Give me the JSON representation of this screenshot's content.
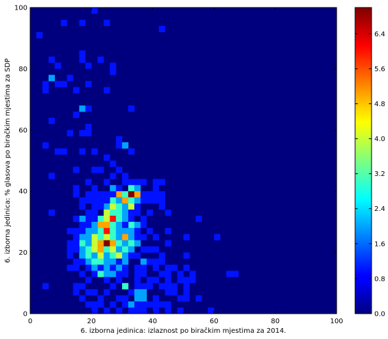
{
  "chart_data": {
    "type": "heatmap",
    "title": "",
    "xlabel": "6. izborna jedinica: izlaznost po biračkim mjestima za 2014.",
    "ylabel": "6. izborna jedinica: % glasova po biračkim mjestima za SDP",
    "xlim": [
      0,
      100
    ],
    "ylim": [
      0,
      100
    ],
    "x_ticks": [
      "0",
      "20",
      "40",
      "60",
      "80",
      "100"
    ],
    "y_ticks": [
      "0",
      "20",
      "40",
      "60",
      "80",
      "100"
    ],
    "bin_size": 2,
    "colormap": "jet",
    "color_range": [
      0,
      7
    ],
    "colorbar_ticks": [
      "0.0",
      "0.8",
      "1.6",
      "2.4",
      "3.2",
      "4.0",
      "4.8",
      "5.6",
      "6.4"
    ],
    "colorbar_tick_values": [
      0,
      0.8,
      1.6,
      2.4,
      3.2,
      4.0,
      4.8,
      5.6,
      6.4
    ],
    "cells": [
      [
        20,
        98,
        1
      ],
      [
        10,
        94,
        1
      ],
      [
        16,
        94,
        1
      ],
      [
        24,
        94,
        1
      ],
      [
        42,
        92,
        1
      ],
      [
        2,
        90,
        1
      ],
      [
        6,
        82,
        1
      ],
      [
        16,
        82,
        1
      ],
      [
        22,
        82,
        1
      ],
      [
        16,
        84,
        1
      ],
      [
        8,
        80,
        1
      ],
      [
        18,
        80,
        1
      ],
      [
        26,
        80,
        1
      ],
      [
        26,
        78,
        1
      ],
      [
        6,
        76,
        2
      ],
      [
        12,
        76,
        1
      ],
      [
        4,
        74,
        1
      ],
      [
        8,
        74,
        1
      ],
      [
        10,
        74,
        1
      ],
      [
        18,
        74,
        1
      ],
      [
        14,
        72,
        1
      ],
      [
        4,
        72,
        1
      ],
      [
        24,
        72,
        1
      ],
      [
        16,
        66,
        2
      ],
      [
        18,
        66,
        1
      ],
      [
        32,
        66,
        1
      ],
      [
        14,
        64,
        1
      ],
      [
        6,
        62,
        1
      ],
      [
        18,
        60,
        1
      ],
      [
        12,
        58,
        1
      ],
      [
        16,
        58,
        1
      ],
      [
        18,
        58,
        1
      ],
      [
        28,
        56,
        1
      ],
      [
        28,
        54,
        1
      ],
      [
        30,
        54,
        2
      ],
      [
        32,
        52,
        1
      ],
      [
        10,
        52,
        1
      ],
      [
        16,
        52,
        1
      ],
      [
        20,
        52,
        1
      ],
      [
        24,
        50,
        1
      ],
      [
        4,
        54,
        1
      ],
      [
        8,
        52,
        1
      ],
      [
        26,
        48,
        1
      ],
      [
        14,
        46,
        1
      ],
      [
        20,
        46,
        1
      ],
      [
        22,
        46,
        1
      ],
      [
        28,
        46,
        1
      ],
      [
        26,
        44,
        1
      ],
      [
        30,
        44,
        1
      ],
      [
        6,
        44,
        1
      ],
      [
        30,
        42,
        1
      ],
      [
        34,
        42,
        1
      ],
      [
        36,
        42,
        1
      ],
      [
        40,
        42,
        1
      ],
      [
        42,
        42,
        1
      ],
      [
        18,
        42,
        1
      ],
      [
        24,
        42,
        1
      ],
      [
        32,
        42,
        1
      ],
      [
        14,
        40,
        1
      ],
      [
        20,
        40,
        1
      ],
      [
        26,
        40,
        2
      ],
      [
        28,
        40,
        1
      ],
      [
        32,
        40,
        3
      ],
      [
        34,
        40,
        2
      ],
      [
        40,
        40,
        1
      ],
      [
        28,
        38,
        5
      ],
      [
        30,
        38,
        3
      ],
      [
        32,
        38,
        7
      ],
      [
        34,
        38,
        5
      ],
      [
        36,
        38,
        1
      ],
      [
        38,
        38,
        1
      ],
      [
        40,
        38,
        1
      ],
      [
        42,
        38,
        1
      ],
      [
        18,
        38,
        1
      ],
      [
        20,
        38,
        1
      ],
      [
        22,
        38,
        1
      ],
      [
        24,
        38,
        1
      ],
      [
        26,
        38,
        1
      ],
      [
        14,
        38,
        1
      ],
      [
        26,
        36,
        3
      ],
      [
        28,
        36,
        2
      ],
      [
        30,
        36,
        5
      ],
      [
        32,
        36,
        3
      ],
      [
        34,
        36,
        2
      ],
      [
        36,
        36,
        1
      ],
      [
        38,
        36,
        1
      ],
      [
        40,
        36,
        1
      ],
      [
        42,
        36,
        1
      ],
      [
        20,
        36,
        1
      ],
      [
        24,
        36,
        1
      ],
      [
        16,
        36,
        1
      ],
      [
        18,
        36,
        1
      ],
      [
        22,
        36,
        1
      ],
      [
        24,
        34,
        2
      ],
      [
        26,
        34,
        4
      ],
      [
        28,
        34,
        3
      ],
      [
        30,
        34,
        2
      ],
      [
        32,
        34,
        4
      ],
      [
        34,
        34,
        1
      ],
      [
        22,
        34,
        1
      ],
      [
        20,
        34,
        1
      ],
      [
        16,
        34,
        1
      ],
      [
        42,
        34,
        1
      ],
      [
        24,
        32,
        4
      ],
      [
        26,
        32,
        3
      ],
      [
        28,
        32,
        3
      ],
      [
        30,
        32,
        2
      ],
      [
        32,
        32,
        1
      ],
      [
        20,
        32,
        1
      ],
      [
        18,
        32,
        1
      ],
      [
        6,
        32,
        1
      ],
      [
        38,
        32,
        1
      ],
      [
        44,
        32,
        1
      ],
      [
        34,
        32,
        1
      ],
      [
        22,
        30,
        3
      ],
      [
        24,
        30,
        4
      ],
      [
        26,
        30,
        6
      ],
      [
        28,
        30,
        3
      ],
      [
        30,
        30,
        2
      ],
      [
        32,
        30,
        1
      ],
      [
        18,
        30,
        1
      ],
      [
        16,
        30,
        2
      ],
      [
        14,
        30,
        1
      ],
      [
        20,
        30,
        1
      ],
      [
        36,
        30,
        1
      ],
      [
        54,
        30,
        1
      ],
      [
        22,
        28,
        5
      ],
      [
        24,
        28,
        5
      ],
      [
        26,
        28,
        3
      ],
      [
        28,
        28,
        2
      ],
      [
        32,
        28,
        3
      ],
      [
        34,
        28,
        2
      ],
      [
        18,
        28,
        1
      ],
      [
        20,
        28,
        2
      ],
      [
        36,
        28,
        1
      ],
      [
        16,
        28,
        1
      ],
      [
        30,
        28,
        1
      ],
      [
        22,
        26,
        3
      ],
      [
        24,
        26,
        6
      ],
      [
        26,
        26,
        3
      ],
      [
        28,
        26,
        2
      ],
      [
        30,
        26,
        2
      ],
      [
        32,
        26,
        2
      ],
      [
        20,
        26,
        2
      ],
      [
        18,
        26,
        2
      ],
      [
        16,
        26,
        1
      ],
      [
        12,
        26,
        1
      ],
      [
        14,
        26,
        1
      ],
      [
        34,
        26,
        1
      ],
      [
        38,
        26,
        1
      ],
      [
        44,
        26,
        1
      ],
      [
        20,
        24,
        4
      ],
      [
        22,
        24,
        3
      ],
      [
        24,
        24,
        4
      ],
      [
        26,
        24,
        3
      ],
      [
        28,
        24,
        2
      ],
      [
        30,
        24,
        5
      ],
      [
        32,
        24,
        2
      ],
      [
        18,
        24,
        2
      ],
      [
        16,
        24,
        2
      ],
      [
        14,
        24,
        1
      ],
      [
        34,
        24,
        1
      ],
      [
        36,
        24,
        1
      ],
      [
        40,
        24,
        1
      ],
      [
        50,
        24,
        1
      ],
      [
        60,
        24,
        1
      ],
      [
        20,
        22,
        4
      ],
      [
        22,
        22,
        5
      ],
      [
        24,
        22,
        7
      ],
      [
        26,
        22,
        5
      ],
      [
        28,
        22,
        3
      ],
      [
        30,
        22,
        2
      ],
      [
        32,
        22,
        3
      ],
      [
        16,
        22,
        3
      ],
      [
        18,
        22,
        2
      ],
      [
        14,
        22,
        1
      ],
      [
        12,
        22,
        1
      ],
      [
        34,
        22,
        2
      ],
      [
        44,
        22,
        1
      ],
      [
        18,
        20,
        3
      ],
      [
        20,
        20,
        4
      ],
      [
        22,
        20,
        5
      ],
      [
        24,
        20,
        3
      ],
      [
        26,
        20,
        4
      ],
      [
        28,
        20,
        2
      ],
      [
        30,
        20,
        3
      ],
      [
        32,
        20,
        2
      ],
      [
        16,
        20,
        2
      ],
      [
        14,
        20,
        1
      ],
      [
        12,
        20,
        1
      ],
      [
        36,
        20,
        1
      ],
      [
        38,
        20,
        1
      ],
      [
        40,
        20,
        1
      ],
      [
        18,
        18,
        3
      ],
      [
        20,
        18,
        2
      ],
      [
        22,
        18,
        4
      ],
      [
        24,
        18,
        2
      ],
      [
        26,
        18,
        3
      ],
      [
        28,
        18,
        4
      ],
      [
        30,
        18,
        2
      ],
      [
        32,
        18,
        1
      ],
      [
        16,
        18,
        2
      ],
      [
        12,
        18,
        1
      ],
      [
        34,
        18,
        1
      ],
      [
        42,
        18,
        1
      ],
      [
        50,
        18,
        1
      ],
      [
        18,
        16,
        2
      ],
      [
        20,
        16,
        3
      ],
      [
        22,
        16,
        3
      ],
      [
        24,
        16,
        2
      ],
      [
        26,
        16,
        2
      ],
      [
        28,
        16,
        1
      ],
      [
        30,
        16,
        2
      ],
      [
        14,
        16,
        1
      ],
      [
        16,
        16,
        1
      ],
      [
        36,
        16,
        2
      ],
      [
        38,
        16,
        1
      ],
      [
        40,
        16,
        1
      ],
      [
        42,
        16,
        1
      ],
      [
        18,
        14,
        1
      ],
      [
        20,
        14,
        2
      ],
      [
        22,
        14,
        1
      ],
      [
        24,
        14,
        2
      ],
      [
        26,
        14,
        1
      ],
      [
        28,
        14,
        2
      ],
      [
        30,
        14,
        1
      ],
      [
        14,
        14,
        1
      ],
      [
        12,
        14,
        1
      ],
      [
        34,
        14,
        1
      ],
      [
        36,
        14,
        1
      ],
      [
        40,
        14,
        1
      ],
      [
        44,
        14,
        1
      ],
      [
        46,
        14,
        1
      ],
      [
        50,
        14,
        1
      ],
      [
        16,
        12,
        1
      ],
      [
        20,
        12,
        1
      ],
      [
        22,
        12,
        3
      ],
      [
        24,
        12,
        2
      ],
      [
        26,
        12,
        2
      ],
      [
        28,
        12,
        1
      ],
      [
        30,
        12,
        1
      ],
      [
        34,
        12,
        1
      ],
      [
        36,
        12,
        1
      ],
      [
        42,
        12,
        1
      ],
      [
        44,
        12,
        1
      ],
      [
        48,
        12,
        1
      ],
      [
        64,
        12,
        1
      ],
      [
        66,
        12,
        1
      ],
      [
        52,
        12,
        1
      ],
      [
        18,
        10,
        1
      ],
      [
        24,
        10,
        1
      ],
      [
        28,
        10,
        1
      ],
      [
        34,
        10,
        1
      ],
      [
        38,
        10,
        1
      ],
      [
        44,
        10,
        1
      ],
      [
        48,
        10,
        1
      ],
      [
        52,
        10,
        1
      ],
      [
        50,
        10,
        1
      ],
      [
        40,
        10,
        1
      ],
      [
        16,
        8,
        1
      ],
      [
        26,
        8,
        1
      ],
      [
        30,
        8,
        3
      ],
      [
        34,
        8,
        1
      ],
      [
        38,
        8,
        1
      ],
      [
        44,
        8,
        1
      ],
      [
        46,
        8,
        1
      ],
      [
        4,
        8,
        1
      ],
      [
        14,
        8,
        1
      ],
      [
        50,
        8,
        1
      ],
      [
        36,
        8,
        1
      ],
      [
        42,
        8,
        1
      ],
      [
        14,
        6,
        1
      ],
      [
        18,
        6,
        1
      ],
      [
        24,
        6,
        1
      ],
      [
        32,
        6,
        1
      ],
      [
        34,
        6,
        2
      ],
      [
        36,
        6,
        2
      ],
      [
        44,
        6,
        1
      ],
      [
        46,
        6,
        1
      ],
      [
        50,
        6,
        1
      ],
      [
        20,
        6,
        1
      ],
      [
        22,
        4,
        1
      ],
      [
        28,
        4,
        1
      ],
      [
        30,
        4,
        1
      ],
      [
        34,
        4,
        2
      ],
      [
        36,
        4,
        2
      ],
      [
        40,
        4,
        1
      ],
      [
        48,
        4,
        1
      ],
      [
        50,
        4,
        1
      ],
      [
        54,
        4,
        1
      ],
      [
        16,
        4,
        1
      ],
      [
        20,
        2,
        1
      ],
      [
        22,
        2,
        1
      ],
      [
        26,
        2,
        1
      ],
      [
        30,
        2,
        1
      ],
      [
        32,
        2,
        2
      ],
      [
        34,
        2,
        1
      ],
      [
        36,
        2,
        1
      ],
      [
        38,
        2,
        1
      ],
      [
        44,
        2,
        1
      ],
      [
        40,
        2,
        1
      ],
      [
        42,
        2,
        1
      ],
      [
        18,
        2,
        1
      ],
      [
        20,
        0,
        1
      ],
      [
        24,
        0,
        1
      ],
      [
        28,
        0,
        1
      ],
      [
        32,
        0,
        1
      ],
      [
        34,
        0,
        1
      ],
      [
        36,
        0,
        1
      ],
      [
        40,
        0,
        1
      ],
      [
        44,
        0,
        1
      ],
      [
        48,
        0,
        1
      ],
      [
        58,
        0,
        1
      ]
    ]
  }
}
